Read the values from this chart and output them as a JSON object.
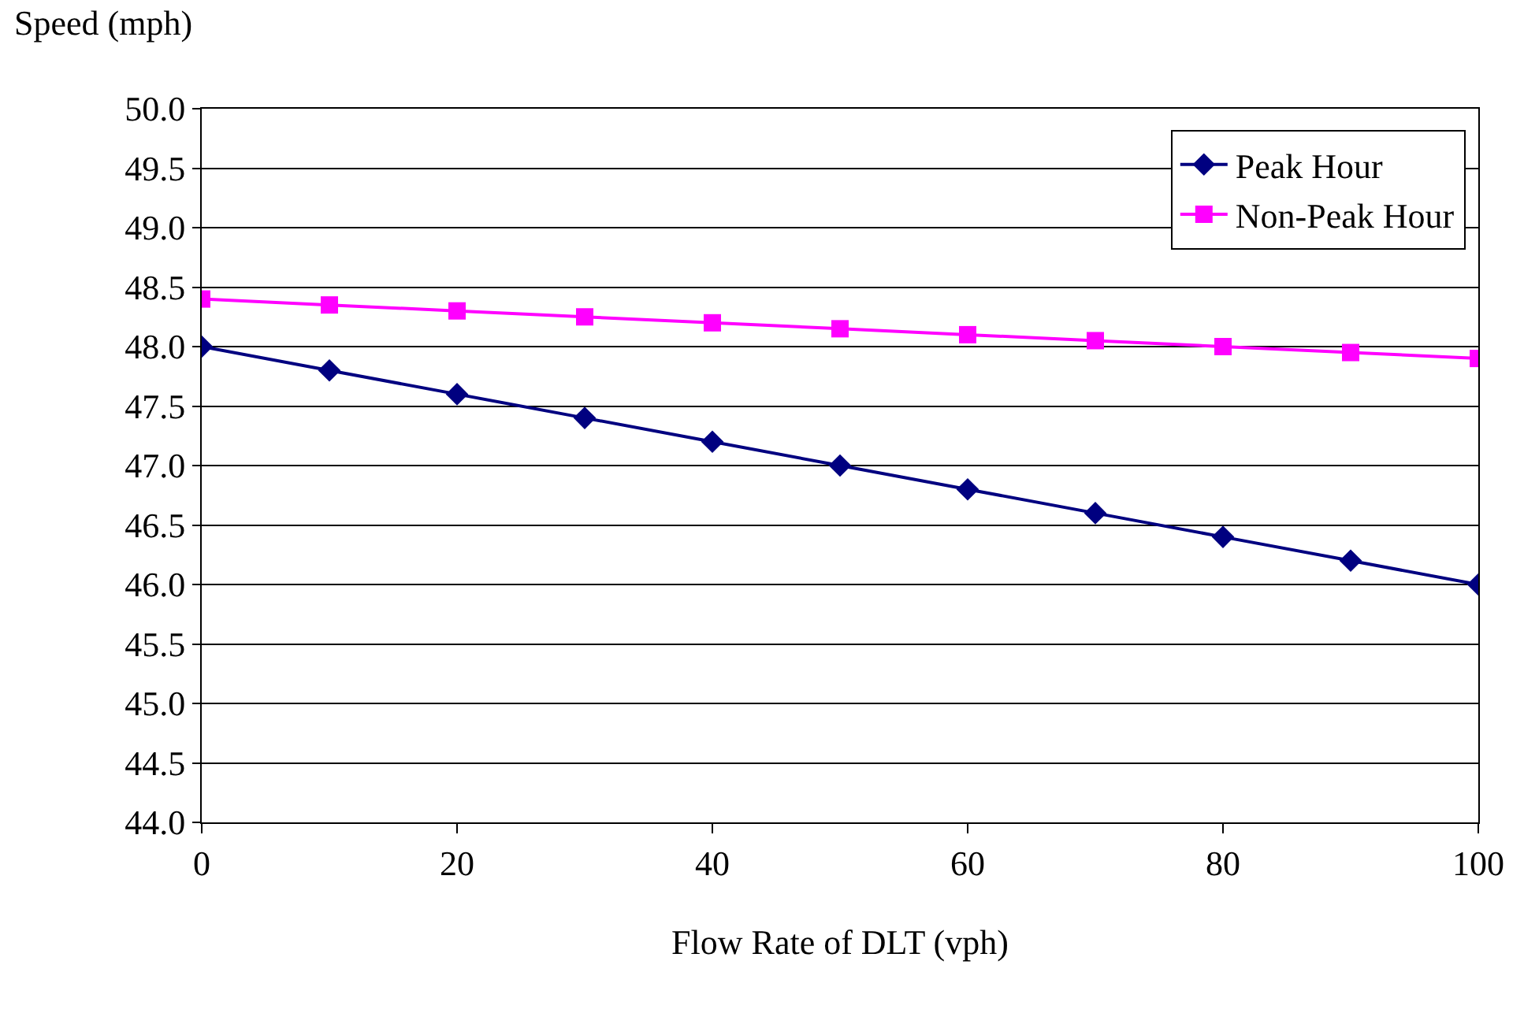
{
  "chart_data": {
    "type": "line",
    "xlabel": "Flow Rate of DLT (vph)",
    "ylabel": "Speed (mph)",
    "x": [
      0,
      10,
      20,
      30,
      40,
      50,
      60,
      70,
      80,
      90,
      100
    ],
    "series": [
      {
        "name": "Peak Hour",
        "color": "#000080",
        "marker": "diamond",
        "values": [
          48.0,
          47.8,
          47.6,
          47.4,
          47.2,
          47.0,
          46.8,
          46.6,
          46.4,
          46.2,
          46.0
        ]
      },
      {
        "name": "Non-Peak Hour",
        "color": "#ff00ff",
        "marker": "square",
        "values": [
          48.4,
          48.35,
          48.3,
          48.25,
          48.2,
          48.15,
          48.1,
          48.05,
          48.0,
          47.95,
          47.9
        ]
      }
    ],
    "xlim": [
      0,
      100
    ],
    "xticks": [
      0,
      20,
      40,
      60,
      80,
      100
    ],
    "ylim": [
      44,
      50
    ],
    "yticks": [
      {
        "value": 44,
        "label": "44.0"
      },
      {
        "value": 44.5,
        "label": "44.5"
      },
      {
        "value": 45,
        "label": "45.0"
      },
      {
        "value": 45.5,
        "label": "45.5"
      },
      {
        "value": 46,
        "label": "46.0"
      },
      {
        "value": 46.5,
        "label": "46.5"
      },
      {
        "value": 47,
        "label": "47.0"
      },
      {
        "value": 47.5,
        "label": "47.5"
      },
      {
        "value": 48,
        "label": "48.0"
      },
      {
        "value": 48.5,
        "label": "48.5"
      },
      {
        "value": 49,
        "label": "49.0"
      },
      {
        "value": 49.5,
        "label": "49.5"
      },
      {
        "value": 50,
        "label": "50.0"
      }
    ],
    "grid": "y",
    "legend": "top right",
    "line_style": "solid"
  }
}
